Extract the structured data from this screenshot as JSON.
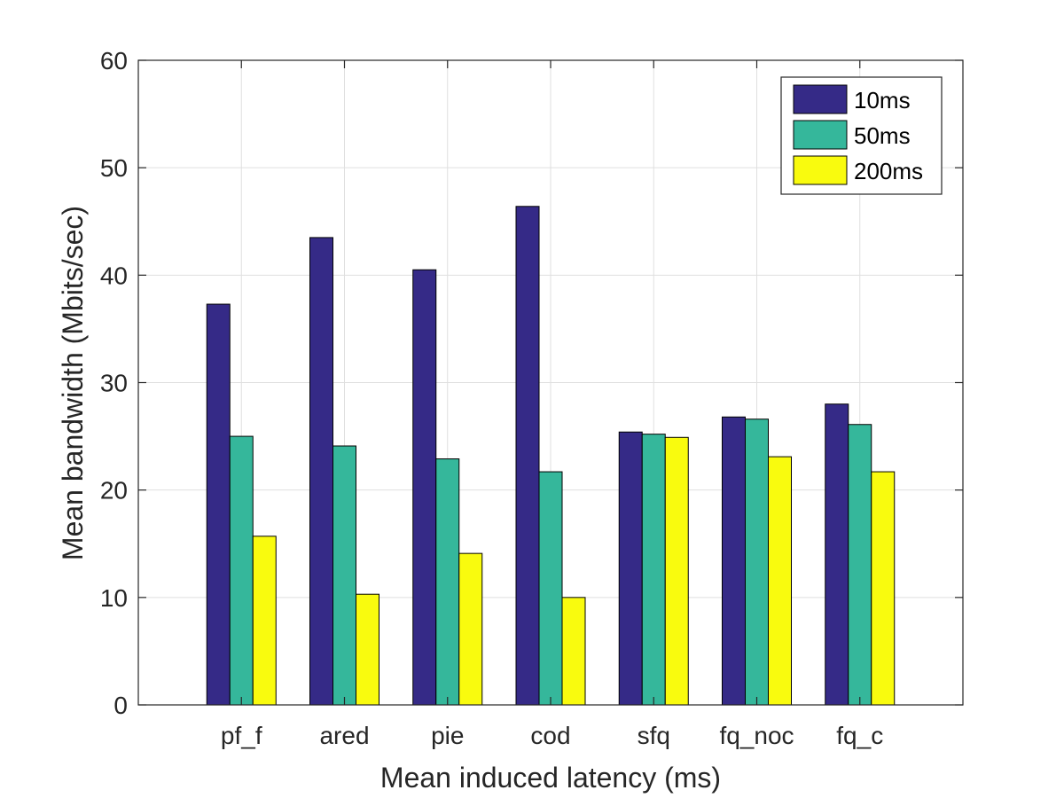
{
  "chart_data": {
    "type": "bar",
    "xlabel": "Mean induced latency (ms)",
    "ylabel": "Mean bandwidth (Mbits/sec)",
    "categories": [
      "pf_f",
      "ared",
      "pie",
      "cod",
      "sfq",
      "fq_noc",
      "fq_c"
    ],
    "ylim": [
      0,
      60
    ],
    "yticks": [
      0,
      10,
      20,
      30,
      40,
      50,
      60
    ],
    "grid": true,
    "legend_position": "top-right",
    "series": [
      {
        "name": "10ms",
        "color": "#352a87",
        "values": [
          37.3,
          43.5,
          40.5,
          46.4,
          25.4,
          26.8,
          28.0
        ]
      },
      {
        "name": "50ms",
        "color": "#35b79b",
        "values": [
          25.0,
          24.1,
          22.9,
          21.7,
          25.2,
          26.6,
          26.1
        ]
      },
      {
        "name": "200ms",
        "color": "#f9fb0e",
        "values": [
          15.7,
          10.3,
          14.1,
          10.0,
          24.9,
          23.1,
          21.7
        ]
      }
    ]
  }
}
